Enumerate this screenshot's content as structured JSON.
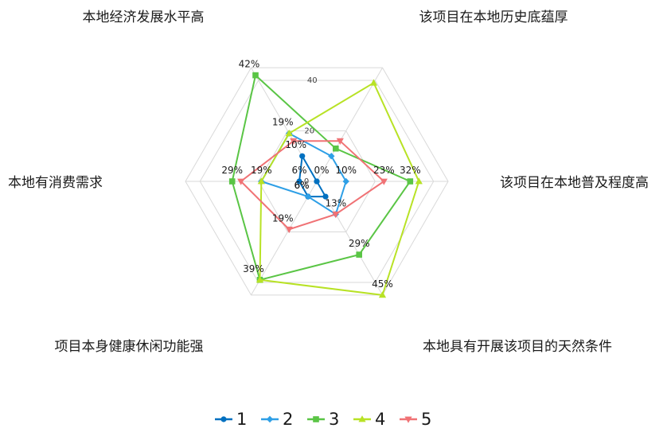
{
  "chart_data": {
    "type": "radar",
    "axes": [
      "本地经济发展水平高",
      "该项目在本地历史底蕴厚",
      "该项目在本地普及程度高",
      "本地具有开展该项目的天然条件",
      "项目本身健康休闲功能强",
      "本地有消费需求"
    ],
    "rmax": 45,
    "ticks": [
      0,
      20,
      40
    ],
    "tick_labels": [
      "0",
      "20",
      "40"
    ],
    "grid": true,
    "legend_position": "bottom",
    "series": [
      {
        "name": "1",
        "color": "#0070C0",
        "marker": "circle",
        "values": [
          10,
          0,
          0,
          6,
          6,
          6
        ],
        "labels": [
          "10%",
          "0%",
          "",
          "",
          "6%",
          "6%"
        ]
      },
      {
        "name": "2",
        "color": "#2E9FE6",
        "marker": "diamond",
        "values": [
          19,
          10,
          10,
          13,
          6,
          19
        ],
        "labels": [
          "19%",
          "",
          "10%",
          "",
          "6%",
          "19%"
        ]
      },
      {
        "name": "3",
        "color": "#5AC545",
        "marker": "square",
        "values": [
          42,
          13,
          32,
          29,
          39,
          29
        ],
        "labels": [
          "42%",
          "",
          "32%",
          "29%",
          "39%",
          "29%"
        ]
      },
      {
        "name": "4",
        "color": "#B8E225",
        "marker": "triangle",
        "values": [
          19,
          39,
          35,
          45,
          39,
          19
        ],
        "labels": [
          "",
          "",
          "",
          "45%",
          "",
          ""
        ]
      },
      {
        "name": "5",
        "color": "#F07275",
        "marker": "tri-down",
        "values": [
          16,
          16,
          23,
          13,
          19,
          26
        ],
        "labels": [
          "",
          "",
          "23%",
          "13%",
          "19%",
          ""
        ]
      }
    ]
  }
}
